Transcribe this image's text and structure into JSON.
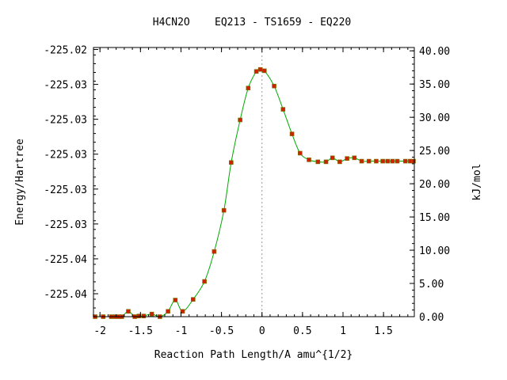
{
  "chart_data": {
    "type": "line",
    "title": "H4CN2O    EQ213 - TS1659 - EQ220",
    "xlabel": "Reaction Path Length/A amu^{1/2}",
    "ylabel_left": "Energy/Hartree",
    "ylabel_right": "kJ/mol",
    "xlim": [
      -2.08,
      1.88
    ],
    "ylim_right": [
      0,
      40.5
    ],
    "x_ticks": [
      -2,
      -1.5,
      -1,
      -0.5,
      0,
      0.5,
      1,
      1.5
    ],
    "x_tick_labels": [
      "-2",
      "-1.5",
      "-1",
      "-0.5",
      "0",
      "0.5",
      "1",
      "1.5"
    ],
    "left_ticks_kjmol": [
      40.2,
      34.95,
      29.7,
      24.45,
      19.2,
      13.95,
      8.7,
      3.45
    ],
    "left_tick_labels": [
      "-225.02",
      "-225.03",
      "-225.03",
      "-225.03",
      "-225.03",
      "-225.03",
      "-225.04",
      "-225.04"
    ],
    "right_ticks": [
      0,
      5,
      10,
      15,
      20,
      25,
      30,
      35,
      40
    ],
    "right_tick_labels": [
      "0.00",
      "5.00",
      "10.00",
      "15.00",
      "20.00",
      "25.00",
      "30.00",
      "35.00",
      "40.00"
    ],
    "ts_position": 0,
    "grid": false,
    "line_color": "#00aa00",
    "marker_color": "#cc2200",
    "marker_stroke": "#777700",
    "dashed_line_color": "#999999",
    "series": [
      {
        "x": [
          -2.06,
          -1.96,
          -1.86,
          -1.81,
          -1.77,
          -1.73,
          -1.65,
          -1.57,
          -1.52,
          -1.46,
          -1.36,
          -1.26,
          -1.16,
          -1.07,
          -0.98,
          -0.85,
          -0.71,
          -0.59,
          -0.47,
          -0.38,
          -0.27,
          -0.17,
          -0.07,
          -0.02,
          0.03,
          0.15,
          0.26,
          0.37,
          0.47,
          0.58,
          0.69,
          0.79,
          0.87,
          0.96,
          1.05,
          1.14,
          1.23,
          1.32,
          1.41,
          1.49,
          1.55,
          1.61,
          1.67,
          1.77,
          1.83,
          1.87
        ],
        "y": [
          0.0,
          0.0,
          0.0,
          0.0,
          0.0,
          0.0,
          0.8,
          0.0,
          0.1,
          0.1,
          0.4,
          0.0,
          0.8,
          2.5,
          0.8,
          2.6,
          5.3,
          9.8,
          16.0,
          23.2,
          29.6,
          34.4,
          36.9,
          37.2,
          37.0,
          34.7,
          31.2,
          27.5,
          24.6,
          23.6,
          23.3,
          23.3,
          23.9,
          23.3,
          23.8,
          23.9,
          23.4,
          23.4,
          23.4,
          23.4,
          23.4,
          23.4,
          23.4,
          23.4,
          23.4,
          23.4
        ]
      }
    ]
  }
}
